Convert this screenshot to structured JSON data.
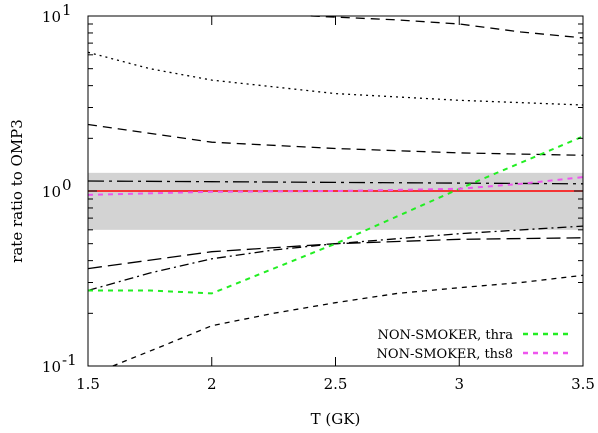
{
  "chart_data": {
    "type": "line",
    "title": "",
    "xlabel": "T (GK)",
    "ylabel": "rate ratio to OMP3",
    "xlim": [
      1.5,
      3.5
    ],
    "ylim": [
      0.1,
      10
    ],
    "y_scale": "log",
    "grid": false,
    "legend_position": "bottom-right",
    "x_ticks": [
      {
        "value": 1.5,
        "label": "1.5"
      },
      {
        "value": 2,
        "label": "2"
      },
      {
        "value": 2.5,
        "label": "2.5"
      },
      {
        "value": 3,
        "label": "3"
      },
      {
        "value": 3.5,
        "label": "3.5"
      }
    ],
    "y_ticks": [
      {
        "value": 0.1,
        "label": "10",
        "exp": "-1"
      },
      {
        "value": 1,
        "label": "10",
        "exp": "0"
      },
      {
        "value": 10,
        "label": "10",
        "exp": "1"
      }
    ],
    "band": {
      "y_low": 0.6,
      "y_high": 1.27,
      "color": "#d3d3d3"
    },
    "series": [
      {
        "x": [
          1.5,
          3.5
        ],
        "y": [
          1.0,
          1.0
        ],
        "color": "#ff0000",
        "dash": "solid"
      },
      {
        "x": [
          1.5,
          2.0,
          2.5,
          3.0,
          3.5
        ],
        "y": [
          1.14,
          1.13,
          1.12,
          1.11,
          1.1
        ],
        "color": "#000000",
        "dash": "longdashdot"
      },
      {
        "x": [
          1.5,
          2.0,
          2.5,
          3.0,
          3.5
        ],
        "y": [
          0.36,
          0.45,
          0.5,
          0.53,
          0.54
        ],
        "color": "#000000",
        "dash": "longdash"
      },
      {
        "x": [
          1.5,
          1.75,
          2.0,
          2.25,
          2.5,
          3.0,
          3.5
        ],
        "y": [
          0.27,
          0.34,
          0.41,
          0.46,
          0.5,
          0.57,
          0.63
        ],
        "color": "#000000",
        "dash": "dashdot"
      },
      {
        "x": [
          1.5,
          2.0,
          2.5,
          3.0,
          3.5
        ],
        "y": [
          2.4,
          1.9,
          1.75,
          1.65,
          1.6
        ],
        "color": "#000000",
        "dash": "dash"
      },
      {
        "x": [
          1.5,
          1.75,
          2.0,
          2.5,
          3.0,
          3.5
        ],
        "y": [
          6.2,
          5.0,
          4.3,
          3.6,
          3.3,
          3.1
        ],
        "color": "#000000",
        "dash": "dot"
      },
      {
        "x": [
          2.4,
          2.75,
          3.0,
          3.25,
          3.5
        ],
        "y": [
          10.0,
          9.5,
          9.0,
          8.1,
          7.5
        ],
        "color": "#000000",
        "dash": "dash"
      },
      {
        "x": [
          1.6,
          1.8,
          2.0,
          2.25,
          2.5,
          2.75,
          3.0,
          3.25,
          3.5
        ],
        "y": [
          0.1,
          0.13,
          0.17,
          0.2,
          0.23,
          0.26,
          0.28,
          0.3,
          0.33
        ],
        "color": "#000000",
        "dash": "shortdash"
      },
      {
        "name": "NON-SMOKER, thra",
        "x": [
          1.5,
          1.75,
          2.0,
          2.5,
          3.0,
          3.5
        ],
        "y": [
          0.27,
          0.27,
          0.26,
          0.5,
          1.03,
          2.05
        ],
        "color": "#22ee22",
        "dash": "shortdash"
      },
      {
        "name": "NON-SMOKER, ths8",
        "x": [
          1.5,
          2.0,
          2.5,
          3.0,
          3.25,
          3.5
        ],
        "y": [
          0.95,
          0.99,
          1.0,
          1.03,
          1.1,
          1.2
        ],
        "color": "#ee55ee",
        "dash": "shortdash"
      }
    ]
  }
}
